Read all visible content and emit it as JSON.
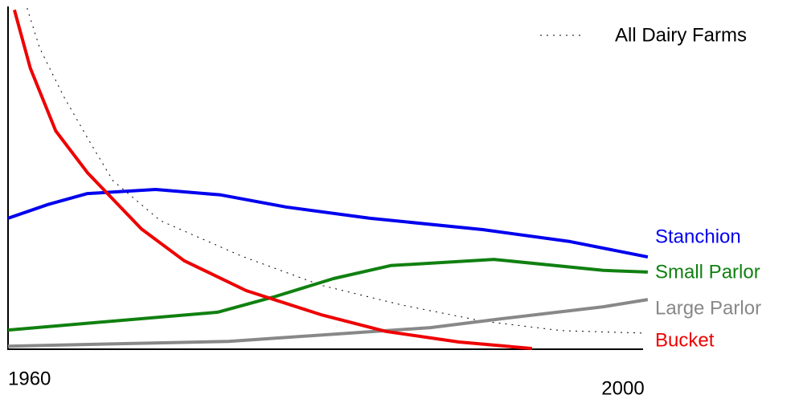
{
  "chart_data": {
    "type": "line",
    "xlim": [
      1960,
      2000
    ],
    "xticks": [
      1960,
      2000
    ],
    "ylim": [
      0,
      100
    ],
    "series": [
      {
        "name": "All Dairy Farms",
        "color": "#000000",
        "dashed": true,
        "x": [
          1961.2,
          1962,
          1963.5,
          1965.1,
          1966.6,
          1969.6,
          1974.7,
          1979.7,
          1984.8,
          1989.9,
          1994.9,
          2000
        ],
        "values": [
          99.5,
          87.8,
          73.8,
          60.9,
          49.2,
          37.5,
          27.2,
          18.7,
          12.9,
          8.2,
          5.4,
          4.7
        ]
      },
      {
        "name": "Stanchion",
        "color": "#0000ee",
        "x": [
          1960,
          1962.5,
          1965,
          1969.3,
          1973.4,
          1977.5,
          1982.8,
          1989.9,
          1995.4,
          2000.3
        ],
        "values": [
          38.2,
          42.2,
          45.4,
          46.6,
          45,
          41.5,
          38.2,
          34.9,
          31.4,
          26.9
        ]
      },
      {
        "name": "Small Parlor",
        "color": "#108010",
        "x": [
          1960,
          1973.2,
          1976.7,
          1980.5,
          1984.1,
          1990.6,
          1997.5,
          2000.3
        ],
        "values": [
          5.6,
          10.8,
          15.2,
          20.6,
          24.4,
          26.2,
          23,
          22.5
        ]
      },
      {
        "name": "Large Parlor",
        "color": "#888888",
        "x": [
          1960,
          1973.9,
          1986.6,
          1991.1,
          1997.5,
          2000.3
        ],
        "values": [
          0.9,
          2.3,
          6.3,
          8.9,
          12.4,
          14.5
        ]
      },
      {
        "name": "Bucket",
        "color": "#ee0000",
        "x": [
          1960.4,
          1961.4,
          1963,
          1965,
          1968.4,
          1971.1,
          1975,
          1979.7,
          1983.8,
          1988.4,
          1993
        ],
        "values": [
          99,
          82,
          63.7,
          51.5,
          35.1,
          25.8,
          17.1,
          10.1,
          5.2,
          2.1,
          0.2
        ]
      }
    ]
  }
}
